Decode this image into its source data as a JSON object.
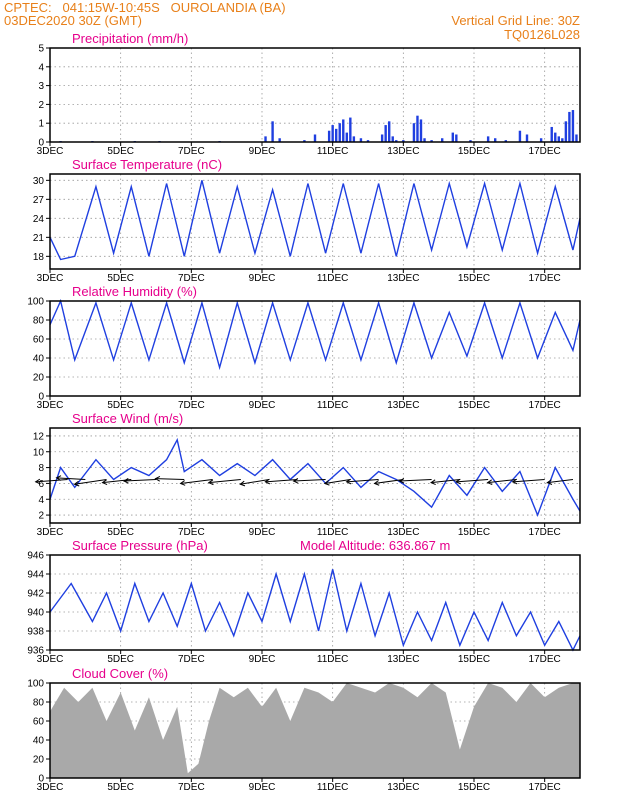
{
  "header": {
    "line1_left": "CPTEC:   041:15W-10:45S   OUROLANDIA (BA)",
    "line2_left": "03DEC2020 30Z (GMT)",
    "line1_right": "Vertical Grid Line: 30Z",
    "line2_right": "TQ0126L028"
  },
  "colors": {
    "header": "#e8801a",
    "title": "#e6008c",
    "series": "#1f3fe0",
    "cloud": "#a9a9a9"
  },
  "x_axis": {
    "start_day": 3,
    "end_day": 18,
    "tick_labels": [
      "3DEC",
      "5DEC",
      "7DEC",
      "9DEC",
      "11DEC",
      "13DEC",
      "15DEC",
      "17DEC"
    ],
    "tick_days": [
      3,
      5,
      7,
      9,
      11,
      13,
      15,
      17
    ]
  },
  "chart_data": [
    {
      "id": "precip",
      "type": "bar",
      "title": "Precipitation (mm/h)",
      "ylim": [
        0,
        5
      ],
      "yticks": [
        0,
        1,
        2,
        3,
        4,
        5
      ],
      "x": [
        3.3,
        4.2,
        5.4,
        6.1,
        7.8,
        9.1,
        9.3,
        9.5,
        10.2,
        10.5,
        10.9,
        11.0,
        11.1,
        11.2,
        11.3,
        11.4,
        11.5,
        11.6,
        11.8,
        12.0,
        12.4,
        12.5,
        12.6,
        12.7,
        12.8,
        13.0,
        13.3,
        13.4,
        13.5,
        13.6,
        13.8,
        14.1,
        14.4,
        14.5,
        14.9,
        15.4,
        15.6,
        15.9,
        16.3,
        16.5,
        16.9,
        17.2,
        17.3,
        17.4,
        17.5,
        17.6,
        17.7,
        17.8,
        17.9
      ],
      "values": [
        0.05,
        0.05,
        0.05,
        0.05,
        0.05,
        0.3,
        1.1,
        0.2,
        0.1,
        0.4,
        0.6,
        0.9,
        0.7,
        1.0,
        1.2,
        0.5,
        1.3,
        0.3,
        0.2,
        0.1,
        0.4,
        0.9,
        1.1,
        0.3,
        0.1,
        0.1,
        1.0,
        1.4,
        1.2,
        0.2,
        0.1,
        0.2,
        0.5,
        0.4,
        0.1,
        0.3,
        0.2,
        0.1,
        0.6,
        0.4,
        0.2,
        0.8,
        0.5,
        0.3,
        0.2,
        1.1,
        1.6,
        1.7,
        0.4
      ]
    },
    {
      "id": "temp",
      "type": "line",
      "title": "Surface Temperature (nC)",
      "ylim": [
        16,
        31
      ],
      "yticks": [
        18,
        21,
        24,
        27,
        30
      ],
      "x": [
        3.0,
        3.3,
        3.7,
        4.3,
        4.8,
        5.3,
        5.8,
        6.3,
        6.8,
        7.3,
        7.8,
        8.3,
        8.8,
        9.3,
        9.8,
        10.3,
        10.8,
        11.3,
        11.8,
        12.3,
        12.8,
        13.3,
        13.8,
        14.3,
        14.8,
        15.3,
        15.8,
        16.3,
        16.8,
        17.3,
        17.8,
        18.0
      ],
      "values": [
        21,
        17.5,
        18,
        29,
        18.5,
        29,
        18,
        29.5,
        18,
        30,
        18.5,
        29,
        18.5,
        28.5,
        18,
        29.5,
        18.5,
        29.5,
        18.5,
        29.5,
        18,
        29.5,
        19,
        29.5,
        19.5,
        29.5,
        19,
        29.5,
        18.5,
        29,
        19,
        24
      ]
    },
    {
      "id": "rh",
      "type": "line",
      "title": "Relative Humidity (%)",
      "ylim": [
        0,
        100
      ],
      "yticks": [
        0,
        20,
        40,
        60,
        80,
        100
      ],
      "x": [
        3.0,
        3.3,
        3.7,
        4.3,
        4.8,
        5.3,
        5.8,
        6.3,
        6.8,
        7.3,
        7.8,
        8.3,
        8.8,
        9.3,
        9.8,
        10.3,
        10.8,
        11.3,
        11.8,
        12.3,
        12.8,
        13.3,
        13.8,
        14.3,
        14.8,
        15.3,
        15.8,
        16.3,
        16.8,
        17.3,
        17.8,
        18.0
      ],
      "values": [
        75,
        100,
        38,
        98,
        38,
        98,
        38,
        98,
        35,
        98,
        30,
        98,
        35,
        98,
        38,
        98,
        38,
        98,
        38,
        98,
        35,
        98,
        40,
        88,
        42,
        98,
        40,
        98,
        40,
        88,
        48,
        80
      ]
    },
    {
      "id": "wind",
      "type": "line",
      "title": "Surface Wind (m/s)",
      "ylim": [
        1,
        13
      ],
      "yticks": [
        2,
        4,
        6,
        8,
        10,
        12
      ],
      "x": [
        3.0,
        3.3,
        3.7,
        4.3,
        4.8,
        5.3,
        5.8,
        6.3,
        6.6,
        6.8,
        7.3,
        7.8,
        8.3,
        8.8,
        9.3,
        9.8,
        10.3,
        10.8,
        11.3,
        11.8,
        12.3,
        12.8,
        13.3,
        13.8,
        14.3,
        14.8,
        15.3,
        15.8,
        16.3,
        16.8,
        17.3,
        17.8,
        18.0
      ],
      "values": [
        4,
        8,
        5.5,
        9,
        6.5,
        8,
        7,
        9,
        11.5,
        7.5,
        9,
        7,
        8.5,
        7,
        9,
        6.5,
        8.5,
        6,
        8,
        5.5,
        7.5,
        6.5,
        5,
        3,
        7,
        4.5,
        8,
        5,
        7.5,
        2,
        8,
        4,
        2.5
      ],
      "arrows": [
        {
          "x": 3.5,
          "dx": -1.0,
          "dy": 0.3
        },
        {
          "x": 4.0,
          "dx": -0.9,
          "dy": -0.2
        },
        {
          "x": 4.6,
          "dx": -1.0,
          "dy": 0.6
        },
        {
          "x": 5.3,
          "dx": -0.9,
          "dy": 0.4
        },
        {
          "x": 6.0,
          "dx": -1.0,
          "dy": 0.2
        },
        {
          "x": 6.8,
          "dx": -0.9,
          "dy": -0.1
        },
        {
          "x": 7.6,
          "dx": -1.0,
          "dy": 0.5
        },
        {
          "x": 8.4,
          "dx": -1.0,
          "dy": 0.4
        },
        {
          "x": 9.2,
          "dx": -0.9,
          "dy": 0.6
        },
        {
          "x": 10.0,
          "dx": -1.0,
          "dy": 0.3
        },
        {
          "x": 10.8,
          "dx": -1.0,
          "dy": 0.2
        },
        {
          "x": 11.5,
          "dx": -0.8,
          "dy": 0.5
        },
        {
          "x": 12.3,
          "dx": -1.0,
          "dy": 0.3
        },
        {
          "x": 13.0,
          "dx": -0.9,
          "dy": 0.5
        },
        {
          "x": 13.8,
          "dx": -1.0,
          "dy": 0.2
        },
        {
          "x": 14.6,
          "dx": -0.9,
          "dy": 0.4
        },
        {
          "x": 15.4,
          "dx": -1.0,
          "dy": 0.3
        },
        {
          "x": 16.2,
          "dx": -0.9,
          "dy": 0.4
        },
        {
          "x": 17.0,
          "dx": -1.0,
          "dy": 0.3
        },
        {
          "x": 17.8,
          "dx": -0.8,
          "dy": 0.4
        }
      ]
    },
    {
      "id": "pres",
      "type": "line",
      "title": "Surface Pressure (hPa)",
      "subtitle": "Model Altitude: 636.867 m",
      "ylim": [
        936,
        946
      ],
      "yticks": [
        936,
        938,
        940,
        942,
        944,
        946
      ],
      "x": [
        3.0,
        3.3,
        3.6,
        3.9,
        4.2,
        4.6,
        5.0,
        5.4,
        5.8,
        6.2,
        6.6,
        7.0,
        7.4,
        7.8,
        8.2,
        8.6,
        9.0,
        9.4,
        9.8,
        10.2,
        10.6,
        11.0,
        11.4,
        11.8,
        12.2,
        12.6,
        13.0,
        13.4,
        13.8,
        14.2,
        14.6,
        15.0,
        15.4,
        15.8,
        16.2,
        16.6,
        17.0,
        17.4,
        17.8,
        18.0
      ],
      "values": [
        940,
        941.5,
        943,
        941,
        939,
        942,
        938,
        943,
        939,
        942,
        938.5,
        943,
        938,
        941,
        937.5,
        942,
        939,
        944,
        939,
        944,
        938,
        944.5,
        938,
        943,
        937.5,
        942,
        936.5,
        940,
        937,
        941,
        936.5,
        940,
        937,
        941,
        937.5,
        940,
        936.5,
        939,
        936,
        937.5
      ]
    },
    {
      "id": "cloud",
      "type": "area",
      "title": "Cloud Cover (%)",
      "ylim": [
        0,
        100
      ],
      "yticks": [
        0,
        20,
        40,
        60,
        80,
        100
      ],
      "x": [
        3.0,
        3.4,
        3.8,
        4.2,
        4.6,
        5.0,
        5.4,
        5.8,
        6.2,
        6.6,
        6.9,
        7.2,
        7.5,
        7.8,
        8.2,
        8.6,
        9.0,
        9.4,
        9.8,
        10.2,
        10.6,
        11.0,
        11.4,
        11.8,
        12.2,
        12.6,
        13.0,
        13.4,
        13.8,
        14.2,
        14.6,
        15.0,
        15.4,
        15.8,
        16.2,
        16.6,
        17.0,
        17.4,
        17.8,
        18.0
      ],
      "values": [
        70,
        95,
        80,
        95,
        60,
        90,
        50,
        85,
        40,
        75,
        5,
        15,
        60,
        95,
        85,
        95,
        75,
        95,
        60,
        95,
        90,
        80,
        100,
        95,
        90,
        100,
        95,
        85,
        100,
        90,
        30,
        75,
        100,
        95,
        80,
        100,
        85,
        95,
        100,
        100
      ]
    }
  ]
}
